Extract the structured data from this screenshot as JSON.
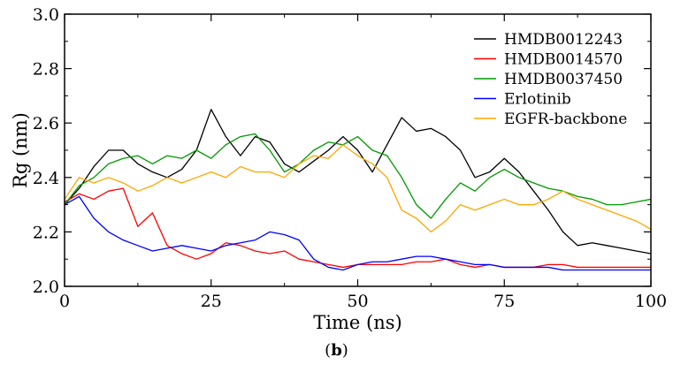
{
  "panel_label": {
    "open": "(",
    "letter": "b",
    "close": ")"
  },
  "chart_data": {
    "type": "line",
    "xlabel": "Time (ns)",
    "ylabel": "Rg (nm)",
    "xlim": [
      0,
      100
    ],
    "ylim": [
      2.0,
      3.0
    ],
    "xticks": [
      "0",
      "25",
      "50",
      "75",
      "100"
    ],
    "yticks": [
      "2.0",
      "2.2",
      "2.4",
      "2.6",
      "2.8",
      "3.0"
    ],
    "grid": false,
    "legend_position": "top-right",
    "x": [
      0,
      2.5,
      5,
      7.5,
      10,
      12.5,
      15,
      17.5,
      20,
      22.5,
      25,
      27.5,
      30,
      32.5,
      35,
      37.5,
      40,
      42.5,
      45,
      47.5,
      50,
      52.5,
      55,
      57.5,
      60,
      62.5,
      65,
      67.5,
      70,
      72.5,
      75,
      77.5,
      80,
      82.5,
      85,
      87.5,
      90,
      92.5,
      95,
      97.5,
      100
    ],
    "series": [
      {
        "name": "HMDB0012243",
        "color": "#000000",
        "values": [
          2.3,
          2.36,
          2.44,
          2.5,
          2.5,
          2.45,
          2.42,
          2.4,
          2.43,
          2.5,
          2.65,
          2.55,
          2.48,
          2.55,
          2.53,
          2.45,
          2.42,
          2.46,
          2.5,
          2.55,
          2.5,
          2.42,
          2.52,
          2.62,
          2.57,
          2.58,
          2.55,
          2.5,
          2.4,
          2.42,
          2.47,
          2.42,
          2.35,
          2.28,
          2.2,
          2.15,
          2.16,
          2.15,
          2.14,
          2.13,
          2.12
        ]
      },
      {
        "name": "HMDB0014570",
        "color": "#ff0000",
        "values": [
          2.31,
          2.34,
          2.32,
          2.35,
          2.36,
          2.22,
          2.27,
          2.15,
          2.12,
          2.1,
          2.12,
          2.16,
          2.15,
          2.13,
          2.12,
          2.13,
          2.1,
          2.09,
          2.08,
          2.07,
          2.08,
          2.08,
          2.08,
          2.08,
          2.09,
          2.09,
          2.1,
          2.08,
          2.07,
          2.08,
          2.07,
          2.07,
          2.07,
          2.08,
          2.08,
          2.07,
          2.07,
          2.07,
          2.07,
          2.07,
          2.07
        ]
      },
      {
        "name": "HMDB0037450",
        "color": "#009900",
        "values": [
          2.3,
          2.37,
          2.4,
          2.45,
          2.47,
          2.48,
          2.45,
          2.48,
          2.47,
          2.5,
          2.47,
          2.52,
          2.55,
          2.56,
          2.5,
          2.42,
          2.45,
          2.5,
          2.53,
          2.52,
          2.55,
          2.5,
          2.48,
          2.4,
          2.3,
          2.25,
          2.32,
          2.38,
          2.35,
          2.4,
          2.43,
          2.4,
          2.38,
          2.36,
          2.35,
          2.33,
          2.32,
          2.3,
          2.3,
          2.31,
          2.32
        ]
      },
      {
        "name": "Erlotinib",
        "color": "#0000ff",
        "values": [
          2.3,
          2.33,
          2.25,
          2.2,
          2.17,
          2.15,
          2.13,
          2.14,
          2.15,
          2.14,
          2.13,
          2.15,
          2.16,
          2.17,
          2.2,
          2.19,
          2.17,
          2.1,
          2.07,
          2.06,
          2.08,
          2.09,
          2.09,
          2.1,
          2.11,
          2.11,
          2.1,
          2.09,
          2.08,
          2.08,
          2.07,
          2.07,
          2.07,
          2.07,
          2.06,
          2.06,
          2.06,
          2.06,
          2.06,
          2.06,
          2.06
        ]
      },
      {
        "name": "EGFR-backbone",
        "color": "#ffa500",
        "values": [
          2.32,
          2.4,
          2.38,
          2.4,
          2.38,
          2.35,
          2.37,
          2.4,
          2.38,
          2.4,
          2.42,
          2.4,
          2.44,
          2.42,
          2.42,
          2.4,
          2.45,
          2.48,
          2.47,
          2.52,
          2.48,
          2.45,
          2.4,
          2.28,
          2.25,
          2.2,
          2.24,
          2.3,
          2.28,
          2.3,
          2.32,
          2.3,
          2.3,
          2.32,
          2.35,
          2.32,
          2.3,
          2.28,
          2.26,
          2.24,
          2.21
        ]
      }
    ]
  }
}
